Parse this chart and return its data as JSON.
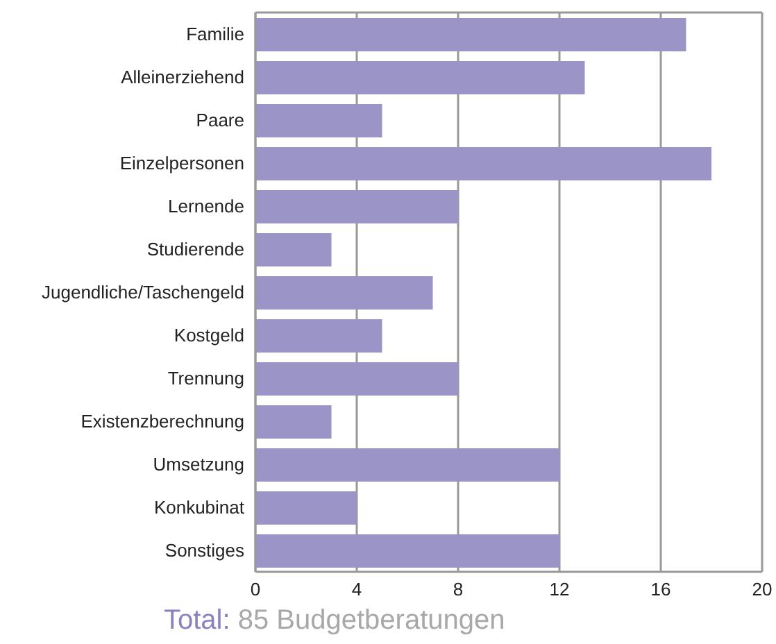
{
  "chart_data": {
    "type": "bar",
    "orientation": "horizontal",
    "categories": [
      "Familie",
      "Alleinerziehend",
      "Paare",
      "Einzelpersonen",
      "Lernende",
      "Studierende",
      "Jugendliche/Taschengeld",
      "Kostgeld",
      "Trennung",
      "Existenzberechnung",
      "Umsetzung",
      "Konkubinat",
      "Sonstiges"
    ],
    "values": [
      17,
      13,
      5,
      18,
      8,
      3,
      7,
      5,
      8,
      3,
      12,
      4,
      12
    ],
    "color": "#9b94c7",
    "xlim": [
      0,
      20
    ],
    "xticks": [
      0,
      4,
      8,
      12,
      16,
      20
    ],
    "grid": "x",
    "annotations": [
      "Total: 85 Budgetberatungen"
    ]
  }
}
